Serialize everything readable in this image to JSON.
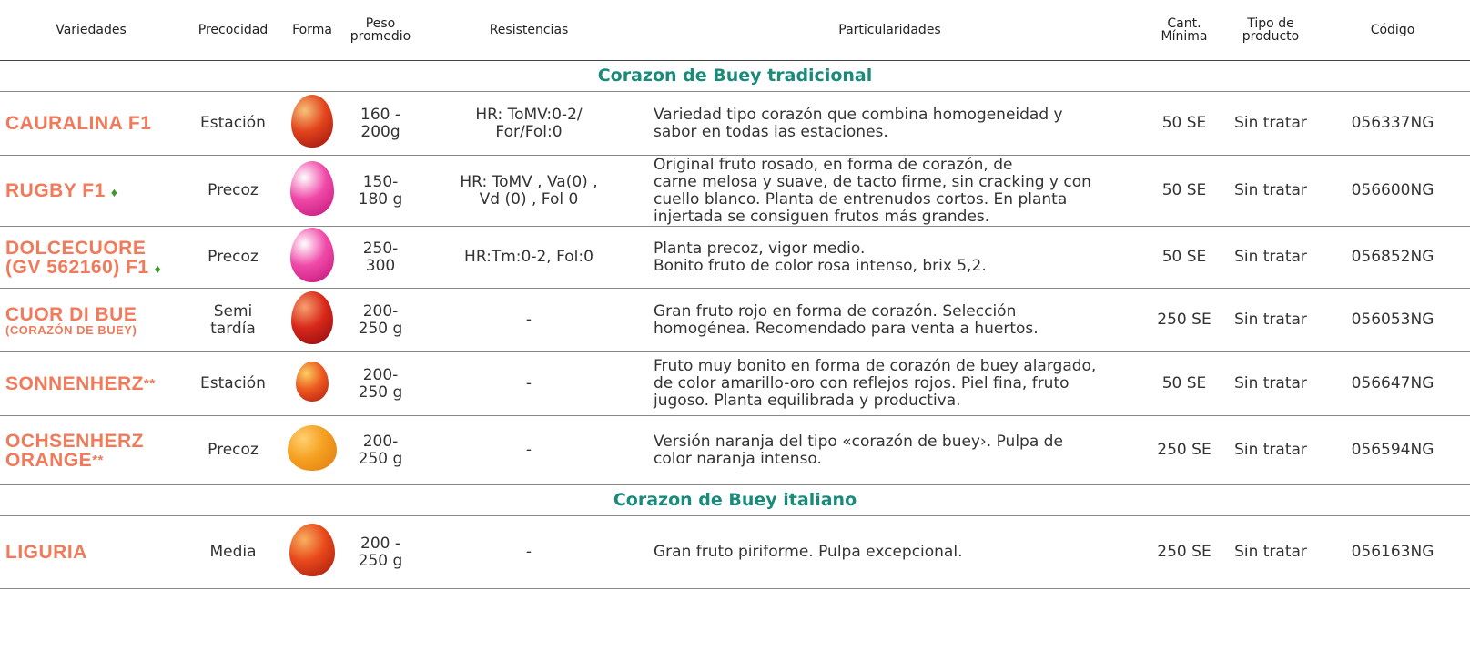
{
  "header": {
    "columns": [
      "Variedades",
      "Precocidad",
      "Forma",
      "Peso\npromedio",
      "Resistencias",
      "Particularidades",
      "Cant.\nMínima",
      "Tipo de\nproducto",
      "Código"
    ]
  },
  "sections": [
    {
      "title": "Corazon de Buey tradicional",
      "rows": [
        {
          "variety": "CAURALINA F1",
          "precocidad": "Estación",
          "peso": "160 -\n200g",
          "resistencias": "HR: ToMV:0-2/\nFor/Fol:0",
          "particularidades": "Variedad tipo corazón que combina homogeneidad y\nsabor en todas las estaciones.",
          "cantidad": "50 SE",
          "tipo": "Sin tratar",
          "codigo": "056337NG"
        },
        {
          "variety": "RUGBY F1",
          "precocidad": "Precoz",
          "peso": "150-\n180 g",
          "resistencias": "HR: ToMV , Va(0) ,\nVd (0) , Fol 0",
          "particularidades": "Original fruto rosado, en forma de corazón, de\ncarne melosa y suave, de tacto firme, sin cracking y con\ncuello blanco. Planta de entrenudos cortos. En planta\ninjertada se consiguen frutos más grandes.",
          "cantidad": "50 SE",
          "tipo": "Sin tratar",
          "codigo": "056600NG"
        },
        {
          "variety": "DOLCECUORE\n(GV 562160) F1",
          "precocidad": "Precoz",
          "peso": "250-\n300",
          "resistencias": "HR:Tm:0-2, Fol:0",
          "particularidades": "Planta precoz, vigor medio.\nBonito fruto de color rosa intenso, brix 5,2.",
          "cantidad": "50 SE",
          "tipo": "Sin tratar",
          "codigo": "056852NG"
        },
        {
          "variety": "CUOR DI BUE",
          "variety_sub": "(CORAZÓN DE BUEY)",
          "precocidad": "Semi\ntardía",
          "peso": "200-\n250 g",
          "resistencias": "-",
          "particularidades": "Gran fruto rojo en forma de corazón. Selección\nhomogénea. Recomendado para venta a huertos.",
          "cantidad": "250 SE",
          "tipo": "Sin tratar",
          "codigo": "056053NG"
        },
        {
          "variety": "SONNENHERZ",
          "variety_note": "**",
          "precocidad": "Estación",
          "peso": "200-\n250 g",
          "resistencias": "-",
          "particularidades": "Fruto muy bonito en forma de corazón de buey alargado,\nde color amarillo-oro con reflejos rojos. Piel fina, fruto\njugoso. Planta equilibrada y productiva.",
          "cantidad": "50 SE",
          "tipo": "Sin tratar",
          "codigo": "056647NG"
        },
        {
          "variety": "OCHSENHERZ\nORANGE",
          "variety_note": "**",
          "precocidad": "Precoz",
          "peso": "200-\n250 g",
          "resistencias": "-",
          "particularidades": "Versión naranja del tipo «corazón de buey›. Pulpa de\ncolor naranja intenso.",
          "cantidad": "250 SE",
          "tipo": "Sin tratar",
          "codigo": "056594NG"
        }
      ]
    },
    {
      "title": "Corazon de Buey italiano",
      "rows": [
        {
          "variety": "LIGURIA",
          "precocidad": "Media",
          "peso": "200 -\n250 g",
          "resistencias": "-",
          "particularidades": "Gran fruto piriforme. Pulpa excepcional.",
          "cantidad": "250 SE",
          "tipo": "Sin tratar",
          "codigo": "056163NG"
        }
      ]
    }
  ]
}
